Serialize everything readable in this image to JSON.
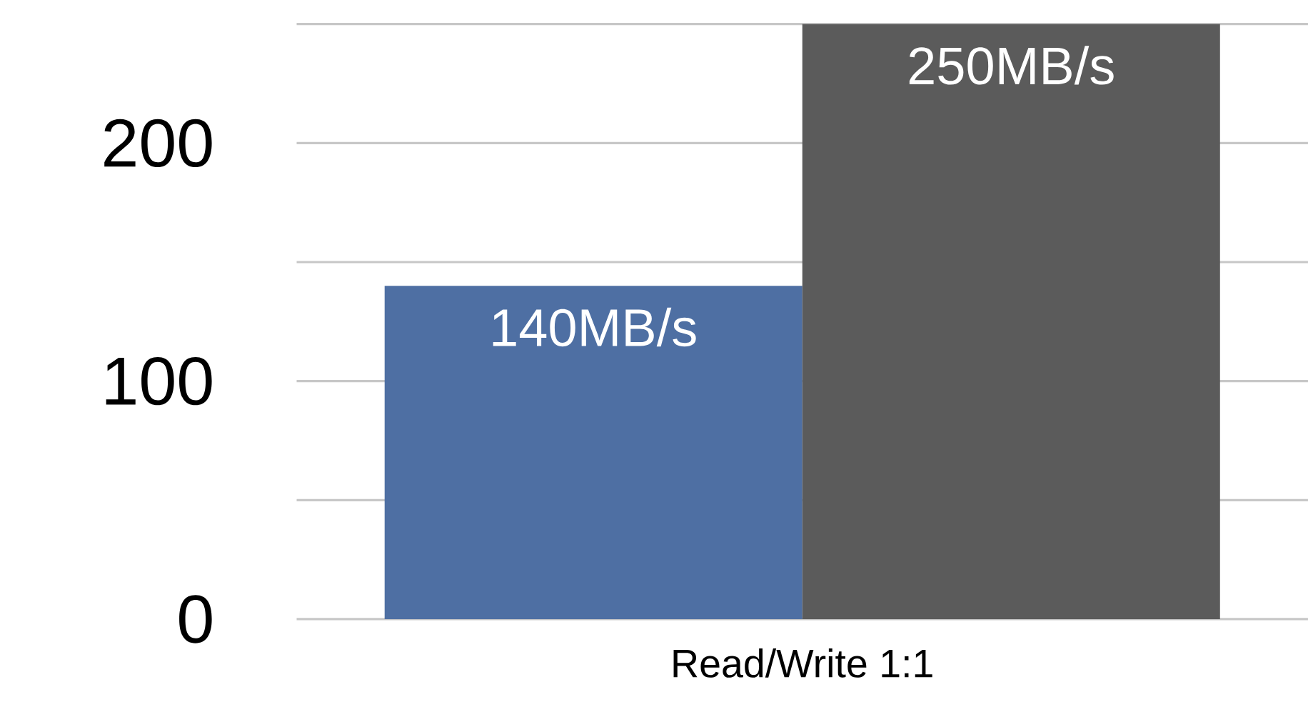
{
  "chart_data": {
    "type": "bar",
    "categories": [
      "Read/Write 1:1"
    ],
    "series": [
      {
        "color": "#4e6fa3",
        "values": [
          140
        ],
        "value_labels": [
          "140MB/s"
        ]
      },
      {
        "color": "#5b5b5b",
        "values": [
          250
        ],
        "value_labels": [
          "250MB/s"
        ]
      }
    ],
    "ylim": [
      0,
      250
    ],
    "yticks": [
      0,
      {
        "value": 50,
        "label": null
      },
      100,
      {
        "value": 150,
        "label": null
      },
      200,
      {
        "value": 250,
        "label": null
      }
    ],
    "grid": "y"
  }
}
